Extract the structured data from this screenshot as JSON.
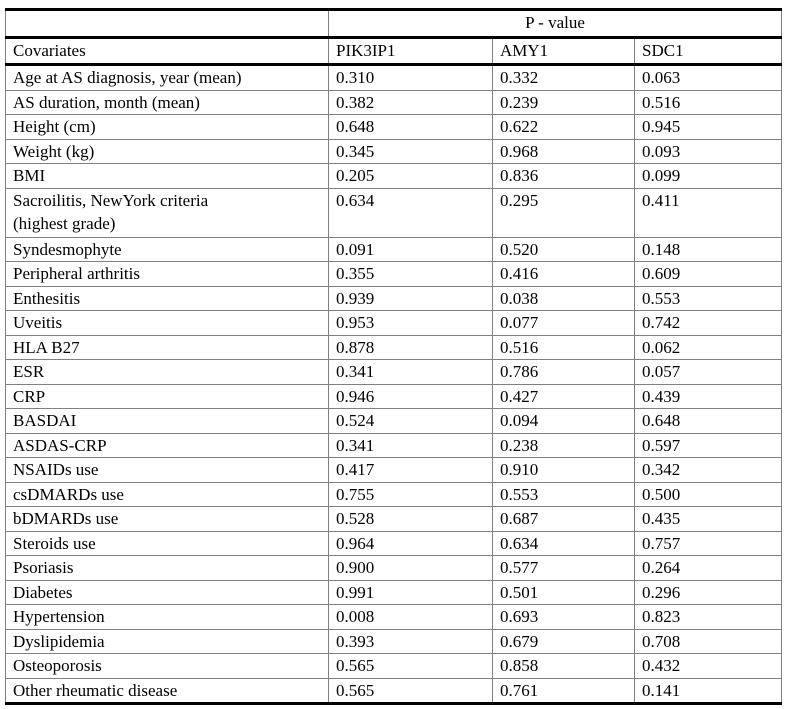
{
  "table": {
    "spanner_header": "P - value",
    "columns": [
      "Covariates",
      "PIK3IP1",
      "AMY1",
      "SDC1"
    ],
    "rows": [
      {
        "label": "Age at AS diagnosis, year (mean)",
        "values": [
          "0.310",
          "0.332",
          "0.063"
        ]
      },
      {
        "label": "AS duration, month (mean)",
        "values": [
          "0.382",
          "0.239",
          "0.516"
        ]
      },
      {
        "label": "Height (cm)",
        "values": [
          "0.648",
          "0.622",
          "0.945"
        ]
      },
      {
        "label": "Weight (kg)",
        "values": [
          "0.345",
          "0.968",
          "0.093"
        ]
      },
      {
        "label": "BMI",
        "values": [
          "0.205",
          "0.836",
          "0.099"
        ]
      },
      {
        "label": "Sacroilitis, NewYork criteria",
        "label2": "(highest grade)",
        "tall": true,
        "values": [
          "0.634",
          "0.295",
          "0.411"
        ]
      },
      {
        "label": "Syndesmophyte",
        "values": [
          "0.091",
          "0.520",
          "0.148"
        ]
      },
      {
        "label": "Peripheral arthritis",
        "values": [
          "0.355",
          "0.416",
          "0.609"
        ]
      },
      {
        "label": "Enthesitis",
        "bold_label": true,
        "values": [
          "0.939",
          "0.038",
          "0.553"
        ],
        "bold_values": [
          false,
          true,
          false
        ]
      },
      {
        "label": "Uveitis",
        "values": [
          "0.953",
          "0.077",
          "0.742"
        ]
      },
      {
        "label": "HLA B27",
        "values": [
          "0.878",
          "0.516",
          "0.062"
        ]
      },
      {
        "label": "ESR",
        "values": [
          "0.341",
          "0.786",
          "0.057"
        ]
      },
      {
        "label": "CRP",
        "values": [
          "0.946",
          "0.427",
          "0.439"
        ]
      },
      {
        "label": "BASDAI",
        "values": [
          "0.524",
          "0.094",
          "0.648"
        ]
      },
      {
        "label": "ASDAS-CRP",
        "values": [
          "0.341",
          "0.238",
          "0.597"
        ]
      },
      {
        "label": "NSAIDs use",
        "values": [
          "0.417",
          "0.910",
          "0.342"
        ]
      },
      {
        "label": "csDMARDs use",
        "values": [
          "0.755",
          "0.553",
          "0.500"
        ]
      },
      {
        "label": "bDMARDs use",
        "values": [
          "0.528",
          "0.687",
          "0.435"
        ]
      },
      {
        "label": "Steroids use",
        "values": [
          "0.964",
          "0.634",
          "0.757"
        ]
      },
      {
        "label": "Psoriasis",
        "values": [
          "0.900",
          "0.577",
          "0.264"
        ]
      },
      {
        "label": "Diabetes",
        "values": [
          "0.991",
          "0.501",
          "0.296"
        ]
      },
      {
        "label": "Hypertension",
        "bold_label": true,
        "values": [
          "0.008",
          "0.693",
          "0.823"
        ],
        "bold_values": [
          true,
          false,
          false
        ]
      },
      {
        "label": "Dyslipidemia",
        "values": [
          "0.393",
          "0.679",
          "0.708"
        ]
      },
      {
        "label": "Osteoporosis",
        "values": [
          "0.565",
          "0.858",
          "0.432"
        ]
      },
      {
        "label": "Other rheumatic disease",
        "values": [
          "0.565",
          "0.761",
          "0.141"
        ]
      }
    ]
  },
  "colors": {
    "grid_line": "#808080",
    "heavy_line": "#000000",
    "text": "#000000",
    "background": "#ffffff"
  }
}
